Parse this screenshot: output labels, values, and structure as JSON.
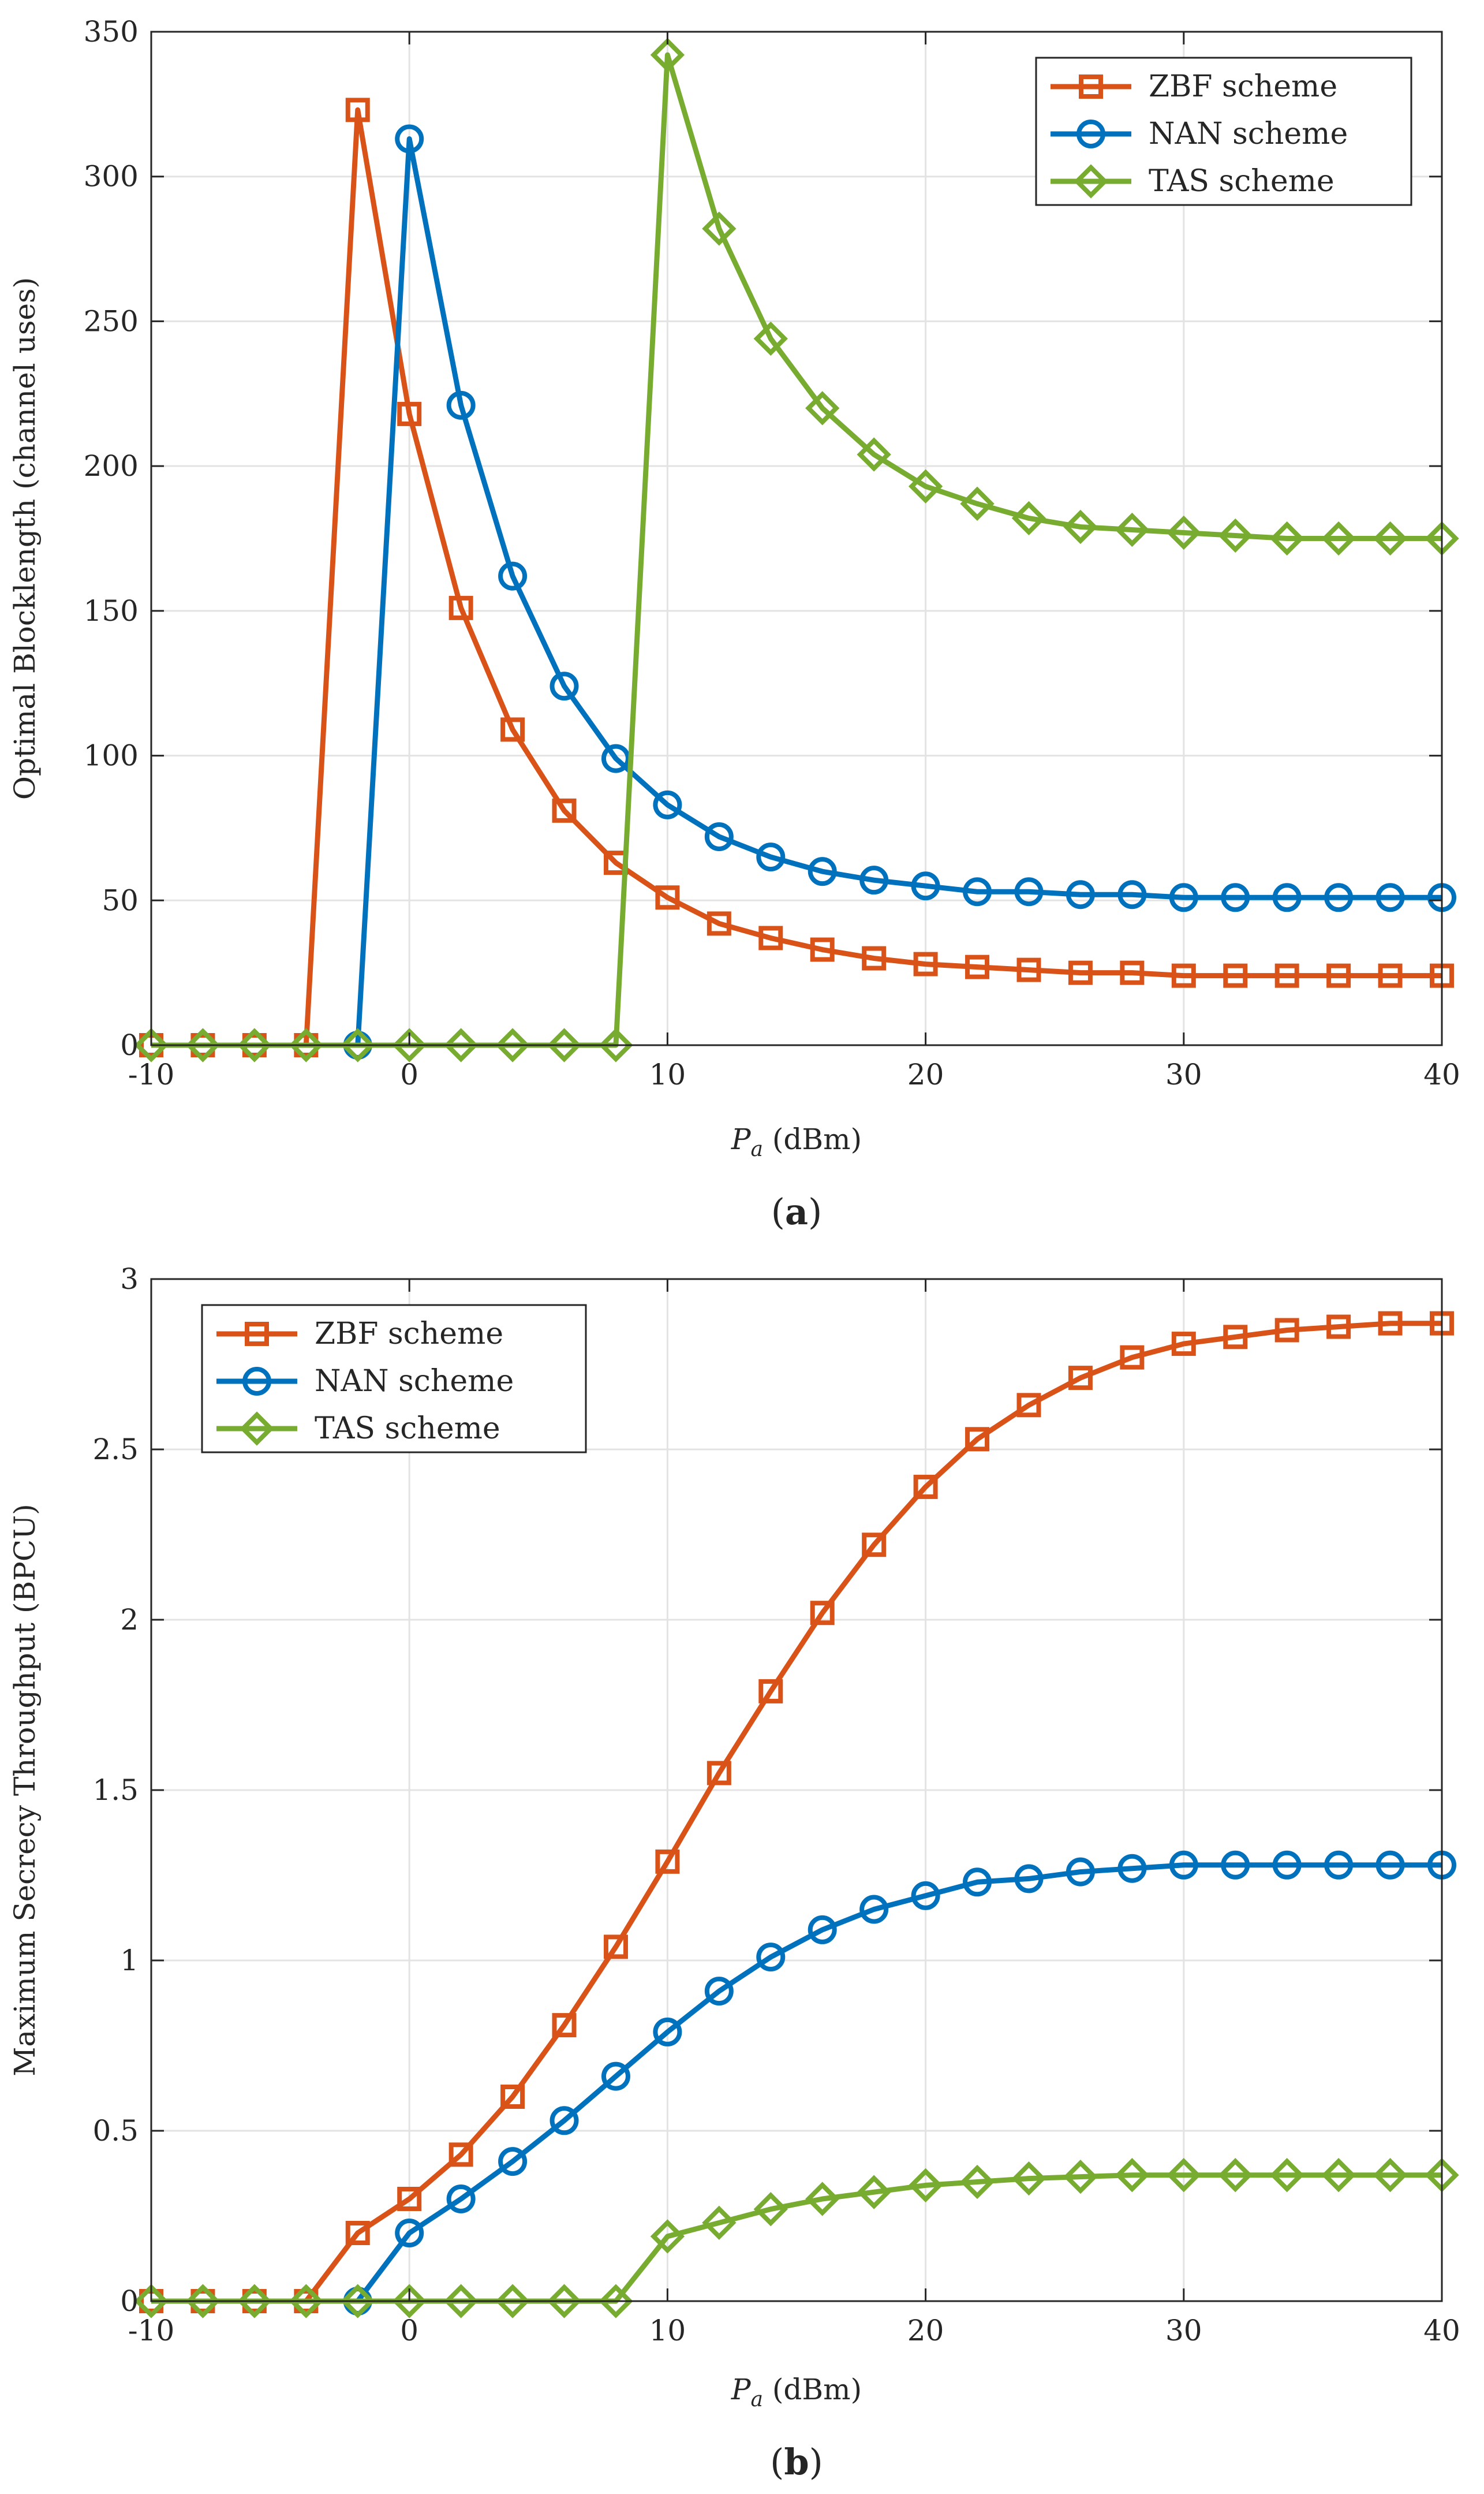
{
  "chart_data": [
    {
      "type": "line",
      "panel": "a",
      "caption_label": "a",
      "xlabel_symbol": "P",
      "xlabel_subscript": "a",
      "xlabel_unit": "(dBm)",
      "ylabel": "Optimal Blocklength (channel uses)",
      "xlim": [
        -10,
        40
      ],
      "ylim": [
        0,
        350
      ],
      "xticks": [
        -10,
        0,
        10,
        20,
        30,
        40
      ],
      "yticks": [
        0,
        50,
        100,
        150,
        200,
        250,
        300,
        350
      ],
      "grid": true,
      "legend_position": "top-right",
      "x": [
        -10,
        -8,
        -6,
        -4,
        -2,
        0,
        2,
        4,
        6,
        8,
        10,
        12,
        14,
        16,
        18,
        20,
        22,
        24,
        26,
        28,
        30,
        32,
        34,
        36,
        38,
        40
      ],
      "series": [
        {
          "name": "ZBF scheme",
          "color": "#D95319",
          "marker": "square",
          "values": [
            0,
            0,
            0,
            0,
            323,
            218,
            151,
            109,
            81,
            63,
            51,
            42,
            37,
            33,
            30,
            28,
            27,
            26,
            25,
            25,
            24,
            24,
            24,
            24,
            24,
            24
          ]
        },
        {
          "name": "NAN scheme",
          "color": "#0072BD",
          "marker": "circle",
          "values": [
            null,
            null,
            null,
            null,
            0,
            313,
            221,
            162,
            124,
            99,
            83,
            72,
            65,
            60,
            57,
            55,
            53,
            53,
            52,
            52,
            51,
            51,
            51,
            51,
            51,
            51
          ]
        },
        {
          "name": "TAS scheme",
          "color": "#77AC30",
          "marker": "diamond",
          "values": [
            0,
            0,
            0,
            0,
            0,
            0,
            0,
            0,
            0,
            0,
            342,
            282,
            244,
            220,
            204,
            193,
            187,
            182,
            179,
            178,
            177,
            176,
            175,
            175,
            175,
            175
          ]
        }
      ]
    },
    {
      "type": "line",
      "panel": "b",
      "caption_label": "b",
      "xlabel_symbol": "P",
      "xlabel_subscript": "a",
      "xlabel_unit": "(dBm)",
      "ylabel": "Maximum Secrecy Throughput (BPCU)",
      "xlim": [
        -10,
        40
      ],
      "ylim": [
        0,
        3
      ],
      "xticks": [
        -10,
        0,
        10,
        20,
        30,
        40
      ],
      "yticks": [
        0,
        0.5,
        1,
        1.5,
        2,
        2.5,
        3
      ],
      "grid": true,
      "legend_position": "top-left",
      "x": [
        -10,
        -8,
        -6,
        -4,
        -2,
        0,
        2,
        4,
        6,
        8,
        10,
        12,
        14,
        16,
        18,
        20,
        22,
        24,
        26,
        28,
        30,
        32,
        34,
        36,
        38,
        40
      ],
      "series": [
        {
          "name": "ZBF scheme",
          "color": "#D95319",
          "marker": "square",
          "values": [
            0,
            0,
            0,
            0,
            0.2,
            0.3,
            0.43,
            0.6,
            0.81,
            1.04,
            1.29,
            1.55,
            1.79,
            2.02,
            2.22,
            2.39,
            2.53,
            2.63,
            2.71,
            2.77,
            2.81,
            2.83,
            2.85,
            2.86,
            2.87,
            2.87
          ]
        },
        {
          "name": "NAN scheme",
          "color": "#0072BD",
          "marker": "circle",
          "values": [
            null,
            null,
            null,
            null,
            0,
            0.2,
            0.3,
            0.41,
            0.53,
            0.66,
            0.79,
            0.91,
            1.01,
            1.09,
            1.15,
            1.19,
            1.23,
            1.24,
            1.26,
            1.27,
            1.28,
            1.28,
            1.28,
            1.28,
            1.28,
            1.28
          ]
        },
        {
          "name": "TAS scheme",
          "color": "#77AC30",
          "marker": "diamond",
          "values": [
            0,
            0,
            0,
            0,
            0,
            0,
            0,
            0,
            0,
            0,
            0.19,
            0.23,
            0.27,
            0.3,
            0.32,
            0.34,
            0.35,
            0.36,
            0.365,
            0.37,
            0.37,
            0.37,
            0.37,
            0.37,
            0.37,
            0.37
          ]
        }
      ]
    }
  ]
}
